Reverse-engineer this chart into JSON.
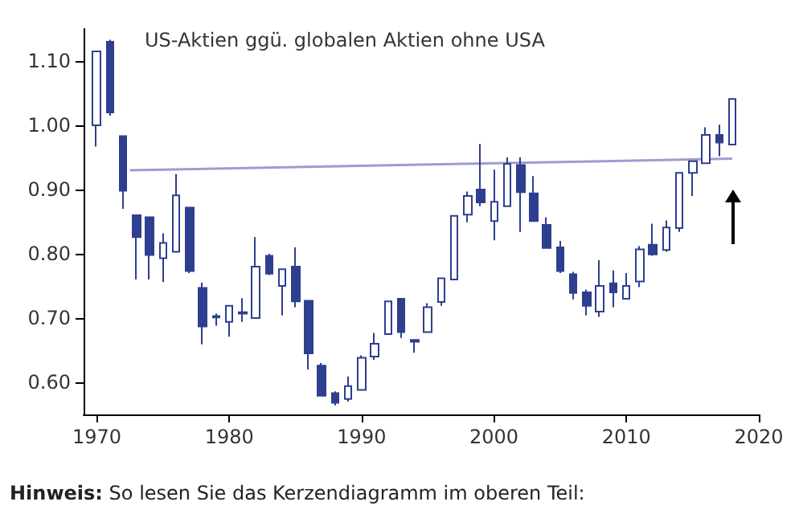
{
  "chart_data": {
    "type": "candlestick",
    "title": "US-Aktien ggü. globalen Aktien ohne USA",
    "annotations": [
      "Hinweis: So lesen Sie das Kerzendiagramm im oberen Teil:"
    ],
    "x": [
      1970,
      1971,
      1972,
      1973,
      1974,
      1975,
      1976,
      1977,
      1978,
      1979,
      1980,
      1981,
      1982,
      1983,
      1984,
      1985,
      1986,
      1987,
      1988,
      1989,
      1990,
      1991,
      1992,
      1993,
      1994,
      1995,
      1996,
      1997,
      1998,
      1999,
      2000,
      2001,
      2002,
      2003,
      2004,
      2005,
      2006,
      2007,
      2008,
      2009,
      2010,
      2011,
      2012,
      2013,
      2014,
      2015,
      2016,
      2017,
      2018
    ],
    "ohlc": [
      [
        1.0,
        1.115,
        0.967,
        1.115
      ],
      [
        1.13,
        1.133,
        1.015,
        1.02
      ],
      [
        0.983,
        0.983,
        0.87,
        0.898
      ],
      [
        0.86,
        0.86,
        0.76,
        0.826
      ],
      [
        0.857,
        0.857,
        0.76,
        0.798
      ],
      [
        0.793,
        0.832,
        0.756,
        0.817
      ],
      [
        0.803,
        0.924,
        0.803,
        0.891
      ],
      [
        0.872,
        0.872,
        0.77,
        0.773
      ],
      [
        0.747,
        0.755,
        0.659,
        0.687
      ],
      [
        0.703,
        0.707,
        0.688,
        0.701
      ],
      [
        0.694,
        0.719,
        0.671,
        0.719
      ],
      [
        0.707,
        0.731,
        0.694,
        0.709
      ],
      [
        0.7,
        0.826,
        0.699,
        0.78
      ],
      [
        0.797,
        0.8,
        0.767,
        0.769
      ],
      [
        0.75,
        0.776,
        0.704,
        0.776
      ],
      [
        0.78,
        0.81,
        0.717,
        0.726
      ],
      [
        0.727,
        0.727,
        0.62,
        0.645
      ],
      [
        0.626,
        0.63,
        0.579,
        0.579
      ],
      [
        0.583,
        0.586,
        0.564,
        0.568
      ],
      [
        0.574,
        0.609,
        0.57,
        0.594
      ],
      [
        0.588,
        0.642,
        0.588,
        0.638
      ],
      [
        0.64,
        0.677,
        0.635,
        0.66
      ],
      [
        0.675,
        0.726,
        0.675,
        0.726
      ],
      [
        0.73,
        0.73,
        0.669,
        0.678
      ],
      [
        0.666,
        0.666,
        0.646,
        0.663
      ],
      [
        0.678,
        0.723,
        0.678,
        0.717
      ],
      [
        0.725,
        0.762,
        0.719,
        0.762
      ],
      [
        0.76,
        0.859,
        0.76,
        0.859
      ],
      [
        0.861,
        0.897,
        0.849,
        0.89
      ],
      [
        0.9,
        0.971,
        0.874,
        0.88
      ],
      [
        0.851,
        0.931,
        0.821,
        0.881
      ],
      [
        0.874,
        0.95,
        0.874,
        0.94
      ],
      [
        0.938,
        0.95,
        0.834,
        0.896
      ],
      [
        0.894,
        0.921,
        0.851,
        0.851
      ],
      [
        0.845,
        0.857,
        0.809,
        0.809
      ],
      [
        0.81,
        0.82,
        0.77,
        0.773
      ],
      [
        0.768,
        0.772,
        0.729,
        0.739
      ],
      [
        0.74,
        0.744,
        0.704,
        0.719
      ],
      [
        0.71,
        0.79,
        0.702,
        0.75
      ],
      [
        0.754,
        0.774,
        0.717,
        0.74
      ],
      [
        0.73,
        0.77,
        0.73,
        0.75
      ],
      [
        0.757,
        0.812,
        0.748,
        0.807
      ],
      [
        0.814,
        0.847,
        0.797,
        0.799
      ],
      [
        0.806,
        0.852,
        0.803,
        0.841
      ],
      [
        0.84,
        0.926,
        0.834,
        0.926
      ],
      [
        0.926,
        0.944,
        0.89,
        0.944
      ],
      [
        0.941,
        0.997,
        0.941,
        0.985
      ],
      [
        0.985,
        1.001,
        0.952,
        0.973
      ],
      [
        0.97,
        1.041,
        0.97,
        1.041
      ]
    ],
    "color": "#2e3f8f",
    "series": [
      {
        "type": "line",
        "x": [
          1972.5,
          2018
        ],
        "values": [
          0.93,
          0.948
        ],
        "color": "#9f9bd0"
      }
    ],
    "xlim": [
      1969,
      2020
    ],
    "xticks": [
      1970,
      1980,
      1990,
      2000,
      2010,
      2020
    ],
    "ylim": [
      0.55,
      1.15
    ],
    "yticks": [
      {
        "value": 0.6,
        "label": "0.60"
      },
      {
        "value": 0.7,
        "label": "0.70"
      },
      {
        "value": 0.8,
        "label": "0.80"
      },
      {
        "value": 0.9,
        "label": "0.90"
      },
      {
        "value": 1.0,
        "label": "1.00"
      },
      {
        "value": 1.1,
        "label": "1.10"
      }
    ],
    "grid": false
  }
}
